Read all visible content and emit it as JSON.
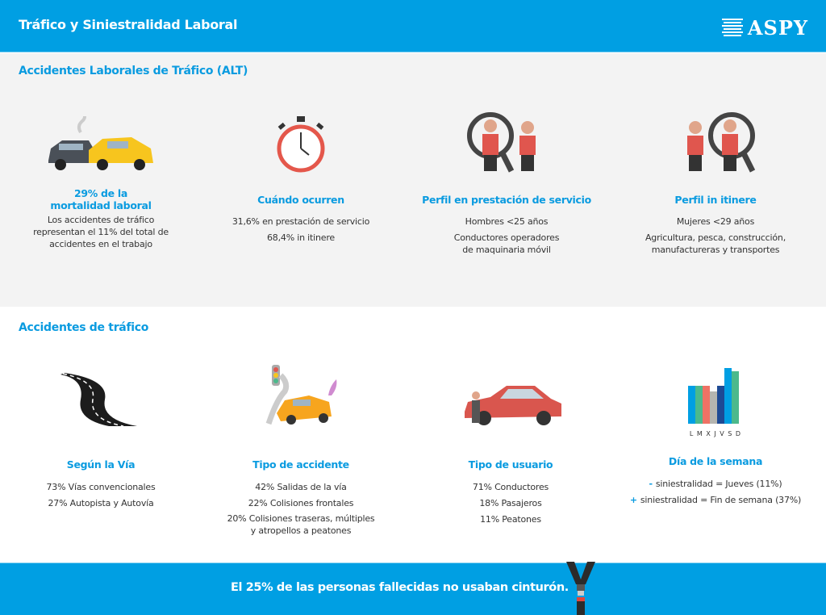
{
  "header": {
    "title": "Tráfico y Siniestralidad Laboral",
    "logo": "ASPY"
  },
  "alt": {
    "title": "Accidentes Laborales de Tráfico (ALT)",
    "items": [
      {
        "title": "29% de la mortalidad laboral",
        "lines": [
          "Los accidentes de tráfico representan el 11% del total de accidentes en el trabajo"
        ]
      },
      {
        "title": "Cuándo ocurren",
        "lines": [
          "31,6% en prestación de servicio",
          "68,4% in itinere"
        ]
      },
      {
        "title": "Perfil en prestación de servicio",
        "lines": [
          "Hombres <25 años",
          "Conductores operadores de maquinaria móvil"
        ]
      },
      {
        "title": "Perfil in itinere",
        "lines": [
          "Mujeres <29 años",
          "Agricultura, pesca, construcción, manufactureras y transportes"
        ]
      }
    ]
  },
  "traffic": {
    "title": "Accidentes de tráfico",
    "items": [
      {
        "title": "Según la Vía",
        "lines": [
          "73% Vías convencionales",
          "27% Autopista y Autovía"
        ]
      },
      {
        "title": "Tipo de accidente",
        "lines": [
          "42% Salidas de la vía",
          "22% Colisiones frontales",
          "20% Colisiones traseras, múltiples y atropellos a peatones"
        ]
      },
      {
        "title": "Tipo de usuario",
        "lines": [
          "71% Conductores",
          "18% Pasajeros",
          "11% Peatones"
        ]
      },
      {
        "title": "Día de la semana",
        "days": "L M X J V S D",
        "minus": "-",
        "plus": "+",
        "lines": [
          "siniestralidad = Jueves (11%)",
          "siniestralidad = Fin de semana (37%)"
        ]
      }
    ]
  },
  "footer": {
    "message": "El 25% de las personas fallecidas no usaban cinturón."
  },
  "colors": {
    "brand": "#009fe3",
    "accent_text": "#0a9be0",
    "gray_bg": "#f3f3f3"
  }
}
